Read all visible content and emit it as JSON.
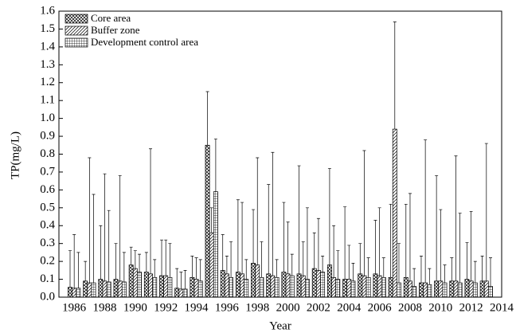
{
  "chart_data": {
    "type": "bar",
    "x_label": "Year",
    "y_label": "TP(mg/L)",
    "x": [
      1986,
      1987,
      1988,
      1989,
      1990,
      1991,
      1992,
      1993,
      1994,
      1995,
      1996,
      1997,
      1998,
      1999,
      2000,
      2001,
      2002,
      2003,
      2004,
      2005,
      2006,
      2007,
      2008,
      2009,
      2010,
      2011,
      2012,
      2013
    ],
    "series": [
      {
        "name": "Core area",
        "color": "#000000",
        "hatch": "cross",
        "values": [
          0.055,
          0.09,
          0.1,
          0.1,
          0.18,
          0.14,
          0.12,
          0.05,
          0.11,
          0.85,
          0.15,
          0.14,
          0.19,
          0.13,
          0.14,
          0.13,
          0.16,
          0.18,
          0.1,
          0.13,
          0.13,
          0.11,
          0.11,
          0.08,
          0.09,
          0.09,
          0.1,
          0.09
        ],
        "errors": [
          0.205,
          0.11,
          0.3,
          0.2,
          0.1,
          0.11,
          0.2,
          0.11,
          0.12,
          0.3,
          0.2,
          0.405,
          0.3,
          0.5,
          0.39,
          0.605,
          0.2,
          0.54,
          0.405,
          0.17,
          0.3,
          0.41,
          0.41,
          0.15,
          0.59,
          0.13,
          0.205,
          0.14
        ]
      },
      {
        "name": "Buffer zone",
        "color": "#000000",
        "hatch": "diagonal",
        "values": [
          0.05,
          0.08,
          0.09,
          0.09,
          0.16,
          0.13,
          0.12,
          0.045,
          0.1,
          0.36,
          0.13,
          0.13,
          0.18,
          0.12,
          0.13,
          0.12,
          0.15,
          0.11,
          0.1,
          0.12,
          0.12,
          0.94,
          0.09,
          0.08,
          0.09,
          0.09,
          0.09,
          0.09
        ],
        "errors": [
          0.3,
          0.7,
          0.6,
          0.59,
          0.1,
          0.7,
          0.2,
          0.095,
          0.12,
          0.14,
          0.1,
          0.4,
          0.6,
          0.69,
          0.29,
          0.19,
          0.29,
          0.29,
          0.19,
          0.7,
          0.38,
          0.6,
          0.49,
          0.8,
          0.4,
          0.7,
          0.39,
          0.77
        ]
      },
      {
        "name": "Development control area",
        "color": "#000000",
        "hatch": "grid",
        "values": [
          0.05,
          0.08,
          0.085,
          0.085,
          0.14,
          0.11,
          0.11,
          0.045,
          0.09,
          0.59,
          0.11,
          0.1,
          0.11,
          0.11,
          0.12,
          0.1,
          0.14,
          0.1,
          0.09,
          0.11,
          0.11,
          0.08,
          0.06,
          0.07,
          0.08,
          0.08,
          0.08,
          0.06
        ],
        "errors": [
          0.2,
          0.495,
          0.4,
          0.165,
          0.1,
          0.1,
          0.19,
          0.105,
          0.12,
          0.295,
          0.2,
          0.11,
          0.2,
          0.1,
          0.12,
          0.4,
          0.09,
          0.16,
          0.1,
          0.11,
          0.11,
          0.22,
          0.1,
          0.09,
          0.1,
          0.39,
          0.12,
          0.16
        ]
      }
    ],
    "xlim": [
      1985,
      2014
    ],
    "xticks": [
      1986,
      1988,
      1990,
      1992,
      1994,
      1996,
      1998,
      2000,
      2002,
      2004,
      2006,
      2008,
      2010,
      2012,
      2014
    ],
    "ylim": [
      0,
      1.6
    ],
    "yticks": [
      {
        "value": 0,
        "label": "0.0"
      },
      0.1,
      0.2,
      0.3,
      0.4,
      0.5,
      0.6,
      0.7,
      0.8,
      0.9,
      {
        "value": 1,
        "label": "1.0"
      },
      1.1,
      1.2,
      1.3,
      1.4,
      1.5,
      1.6
    ],
    "legend": "top-left"
  }
}
